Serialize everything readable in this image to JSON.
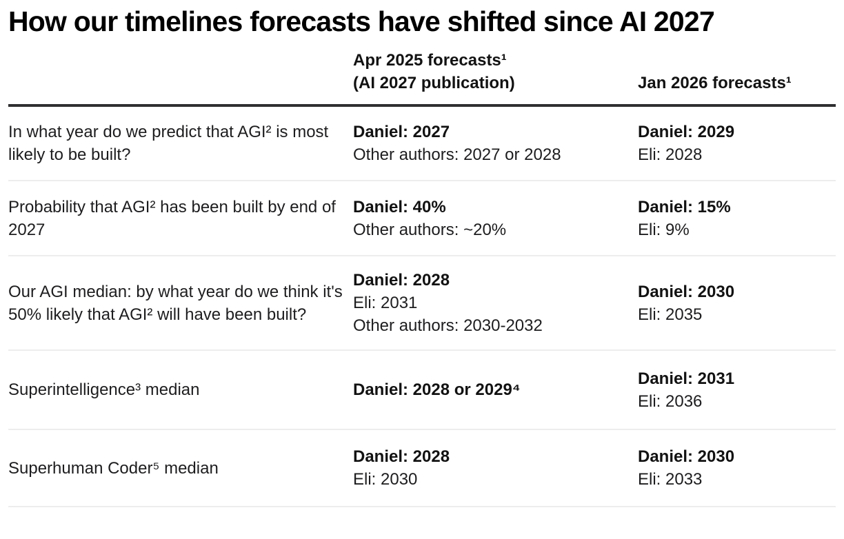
{
  "title": "How our timelines forecasts have shifted since AI 2027",
  "colors": {
    "background": "#ffffff",
    "title_text": "#000000",
    "body_text": "#1d1d1f",
    "header_rule": "#2f2f31",
    "row_rule": "#ededed"
  },
  "table": {
    "header": {
      "question_col": "",
      "apr_col_lines": [
        "Apr 2025 forecasts¹",
        "(AI 2027 publication)"
      ],
      "jan_col": "Jan 2026 forecasts¹"
    },
    "rows": [
      {
        "question": "In what year do we predict that AGI² is most likely to be built?",
        "apr": [
          "Daniel: 2027",
          "Other authors: 2027 or 2028"
        ],
        "jan": [
          "Daniel: 2029",
          "Eli: 2028"
        ]
      },
      {
        "question": "Probability that AGI² has been built by end of 2027",
        "apr": [
          "Daniel: 40%",
          "Other authors: ~20%"
        ],
        "jan": [
          "Daniel: 15%",
          "Eli: 9%"
        ]
      },
      {
        "question": "Our AGI median: by what year do we think it's 50% likely that AGI² will have been built?",
        "apr": [
          "Daniel: 2028",
          "Eli: 2031",
          "Other authors: 2030-2032"
        ],
        "jan": [
          "Daniel: 2030",
          "Eli: 2035"
        ]
      },
      {
        "question": "Superintelligence³ median",
        "apr": [
          "Daniel: 2028 or 2029⁴"
        ],
        "jan": [
          "Daniel: 2031",
          "Eli: 2036"
        ]
      },
      {
        "question": "Superhuman Coder⁵ median",
        "apr": [
          "Daniel: 2028",
          "Eli: 2030"
        ],
        "jan": [
          "Daniel: 2030",
          "Eli: 2033"
        ]
      }
    ]
  }
}
